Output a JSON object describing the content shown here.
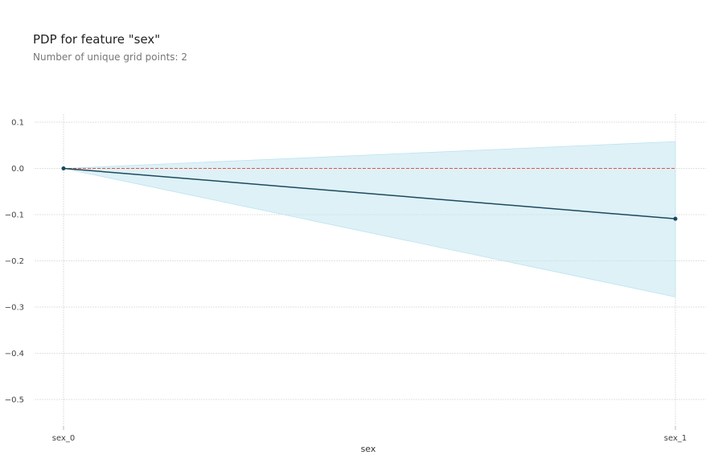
{
  "header": {
    "title": "PDP for feature \"sex\"",
    "subtitle": "Number of unique grid points: 2"
  },
  "chart_data": {
    "type": "line",
    "title": "PDP for feature \"sex\"",
    "subtitle": "Number of unique grid points: 2",
    "xlabel": "sex",
    "ylabel": "",
    "categories": [
      "sex_0",
      "sex_1"
    ],
    "series": [
      {
        "values": [
          0.0,
          -0.109
        ],
        "upper": [
          0.0,
          0.058
        ],
        "lower": [
          0.0,
          -0.278
        ]
      }
    ],
    "reference_line_y": 0.0,
    "ylim": [
      -0.52,
      0.12
    ],
    "yticks": [
      0.1,
      0.0,
      -0.1,
      -0.2,
      -0.3,
      -0.4,
      -0.5
    ],
    "ytick_labels": [
      "0.1",
      "0.0",
      "−0.1",
      "−0.2",
      "−0.3",
      "−0.4",
      "−0.5"
    ],
    "grid": true,
    "colors": {
      "line": "#1a4a5c",
      "band": "#bde3ef",
      "reference": "#e0554a",
      "grid": "#d8d8d8"
    }
  }
}
